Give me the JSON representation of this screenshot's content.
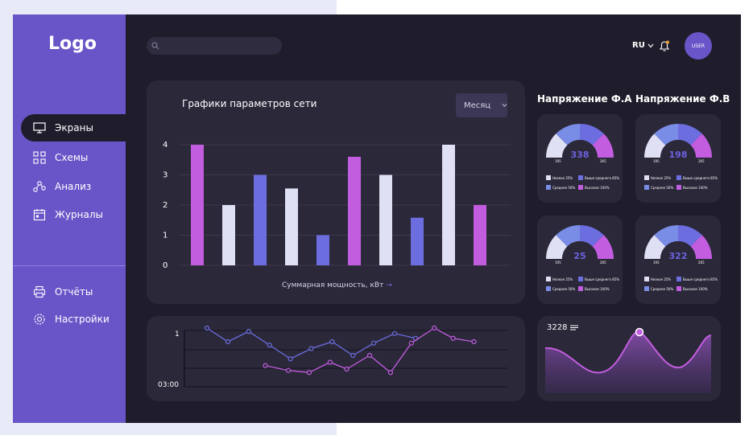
{
  "sidebar": {
    "logo": "Logo",
    "items": [
      {
        "label": "Экраны",
        "icon": "monitor-icon"
      },
      {
        "label": "Схемы",
        "icon": "schema-icon"
      },
      {
        "label": "Анализ",
        "icon": "analysis-icon"
      },
      {
        "label": "Журналы",
        "icon": "journal-icon"
      }
    ],
    "bottom_items": [
      {
        "label": "Отчёты",
        "icon": "printer-icon"
      },
      {
        "label": "Настройки",
        "icon": "gear-icon"
      }
    ]
  },
  "header": {
    "search_placeholder": "",
    "lang": "RU",
    "user": "USER"
  },
  "main_chart": {
    "title": "Графики параметров сети",
    "period": "Месяц",
    "caption": "Суммарная мощность, кВт",
    "caption_arrow": "→"
  },
  "gauges": {
    "title_a": "Напряжение Ф.A",
    "title_b": "Напряжение Ф.B",
    "items": [
      {
        "value": "338"
      },
      {
        "value": "198"
      },
      {
        "value": "25"
      },
      {
        "value": "322"
      }
    ],
    "min": "195",
    "max": "265",
    "legend": [
      "Низкое 25%",
      "Выше среднего 85%",
      "Среднее 50%",
      "Высокое 100%"
    ]
  },
  "line_chart": {
    "y_label": "1",
    "x_label": "03:00"
  },
  "area_chart": {
    "value": "3228"
  },
  "colors": {
    "accent": "#6a55c8",
    "pink": "#c25de0",
    "blue": "#6c6ee0",
    "light": "#dfe0f4",
    "mid_blue": "#7a8de6",
    "bg": "#1f1d2b",
    "card": "#2b2839"
  },
  "chart_data": [
    {
      "type": "bar",
      "title": "Графики параметров сети",
      "xlabel": "Суммарная мощность, кВт",
      "ylabel": "",
      "ylim": [
        0,
        4
      ],
      "yticks": [
        "0",
        "1",
        "2",
        "3",
        "4"
      ],
      "values": [
        4.0,
        2.0,
        3.0,
        2.55,
        1.0,
        3.6,
        3.0,
        1.58,
        4.0,
        2.0
      ],
      "colors": [
        "pink",
        "light",
        "blue",
        "light",
        "blue",
        "pink",
        "light",
        "blue",
        "light",
        "pink"
      ]
    },
    {
      "type": "line",
      "y_tick": "1",
      "x_tick": "03:00",
      "series": [
        {
          "color": "blue",
          "points": [
            [
              0,
              1.0
            ],
            [
              1,
              0.8
            ],
            [
              2,
              0.95
            ],
            [
              3,
              0.75
            ],
            [
              4,
              0.55
            ],
            [
              5,
              0.7
            ],
            [
              6,
              0.8
            ],
            [
              7,
              0.6
            ],
            [
              8,
              0.78
            ],
            [
              9,
              0.92
            ],
            [
              10,
              0.85
            ]
          ]
        },
        {
          "color": "pink",
          "points": [
            [
              2.8,
              0.45
            ],
            [
              3.9,
              0.38
            ],
            [
              4.9,
              0.35
            ],
            [
              5.9,
              0.5
            ],
            [
              6.7,
              0.4
            ],
            [
              7.8,
              0.6
            ],
            [
              8.8,
              0.35
            ],
            [
              9.8,
              0.78
            ],
            [
              10.9,
              1.0
            ],
            [
              11.8,
              0.85
            ],
            [
              12.8,
              0.8
            ]
          ]
        }
      ]
    },
    {
      "type": "area",
      "value": "3228"
    }
  ]
}
